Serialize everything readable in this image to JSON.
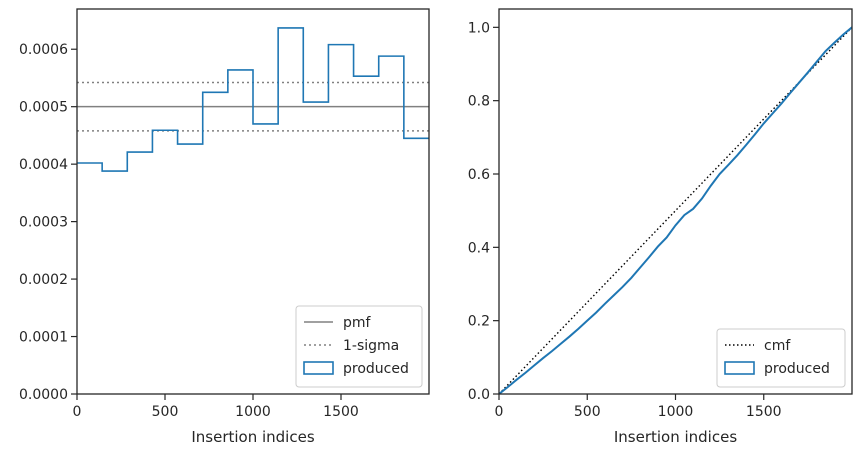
{
  "colors": {
    "hist": "#1f77b4",
    "pmf": "#808080",
    "sigma": "#808080",
    "cmf": "#000000",
    "axes": "#262626"
  },
  "chart_data": [
    {
      "type": "histogram",
      "xlabel": "Insertion indices",
      "ylabel": "",
      "xlim": [
        0,
        2000
      ],
      "ylim": [
        0,
        0.00067
      ],
      "xticks": [
        0,
        500,
        1000,
        1500
      ],
      "xtick_labels": [
        "0",
        "500",
        "1000",
        "1500"
      ],
      "yticks": [
        0,
        0.0001,
        0.0002,
        0.0003,
        0.0004,
        0.0005,
        0.0006
      ],
      "ytick_labels": [
        "0.0000",
        "0.0001",
        "0.0002",
        "0.0003",
        "0.0004",
        "0.0005",
        "0.0006"
      ],
      "bin_edges": [
        0,
        142.9,
        285.7,
        428.6,
        571.4,
        714.3,
        857.1,
        1000,
        1142.9,
        1285.7,
        1428.6,
        1571.4,
        1714.3,
        1857.1,
        2000
      ],
      "bin_values": [
        0.000402,
        0.000388,
        0.000421,
        0.000459,
        0.000435,
        0.000525,
        0.000564,
        0.00047,
        0.000637,
        0.000508,
        0.000608,
        0.000553,
        0.000588,
        0.000445
      ],
      "pmf": 0.0005,
      "sigma_lower": 0.000458,
      "sigma_upper": 0.000542,
      "legend": {
        "position": "lower right",
        "entries": [
          {
            "label": "pmf",
            "style": "solid"
          },
          {
            "label": "1-sigma",
            "style": "dotted"
          },
          {
            "label": "produced",
            "style": "patch"
          }
        ]
      }
    },
    {
      "type": "line",
      "xlabel": "Insertion indices",
      "ylabel": "",
      "xlim": [
        0,
        2000
      ],
      "ylim": [
        0,
        1.05
      ],
      "xticks": [
        0,
        500,
        1000,
        1500
      ],
      "xtick_labels": [
        "0",
        "500",
        "1000",
        "1500"
      ],
      "yticks": [
        0,
        0.2,
        0.4,
        0.6,
        0.8,
        1.0
      ],
      "ytick_labels": [
        "0.0",
        "0.2",
        "0.4",
        "0.6",
        "0.8",
        "1.0"
      ],
      "cmf": {
        "x": [
          0,
          2000
        ],
        "y": [
          0,
          1
        ]
      },
      "produced": {
        "x": [
          0,
          50,
          100,
          150,
          200,
          250,
          300,
          350,
          400,
          450,
          500,
          550,
          600,
          650,
          700,
          750,
          800,
          850,
          900,
          950,
          1000,
          1050,
          1100,
          1150,
          1200,
          1250,
          1300,
          1350,
          1400,
          1450,
          1500,
          1550,
          1600,
          1650,
          1700,
          1750,
          1800,
          1850,
          1900,
          1950,
          2000
        ],
        "y": [
          0,
          0.019,
          0.039,
          0.058,
          0.078,
          0.098,
          0.117,
          0.137,
          0.157,
          0.178,
          0.2,
          0.222,
          0.246,
          0.269,
          0.292,
          0.317,
          0.345,
          0.373,
          0.402,
          0.427,
          0.46,
          0.488,
          0.505,
          0.533,
          0.568,
          0.6,
          0.625,
          0.651,
          0.679,
          0.708,
          0.738,
          0.765,
          0.792,
          0.821,
          0.849,
          0.877,
          0.906,
          0.935,
          0.958,
          0.98,
          1.0
        ]
      },
      "legend": {
        "position": "lower right",
        "entries": [
          {
            "label": "cmf",
            "style": "dotted"
          },
          {
            "label": "produced",
            "style": "patch"
          }
        ]
      }
    }
  ]
}
